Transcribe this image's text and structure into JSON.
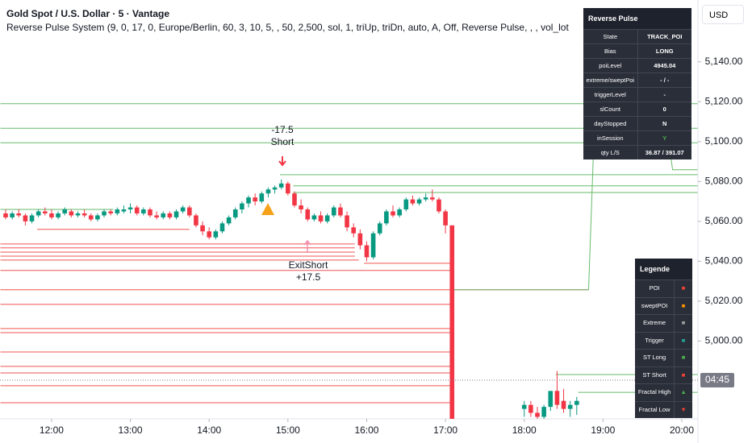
{
  "header": {
    "title": "Gold Spot / U.S. Dollar · 5 · Vantage",
    "indicator": "Reverse Pulse System (9, 0, 17, 0, Europe/Berlin, 60, 3, 10, 5, , 50, 2,500, sol, 1, triUp, triDn, auto, A, Off, Reverse Pulse, , , vol_lot"
  },
  "currency": "USD",
  "chart_data": {
    "type": "candlestick",
    "xlim": [
      680.7,
      1212.3
    ],
    "ylim": [
      4961,
      5171
    ],
    "xticks": [
      {
        "value": 720,
        "label": "12:00"
      },
      {
        "value": 780,
        "label": "13:00"
      },
      {
        "value": 840,
        "label": "14:00"
      },
      {
        "value": 900,
        "label": "15:00"
      },
      {
        "value": 960,
        "label": "16:00"
      },
      {
        "value": 1020,
        "label": "17:00"
      },
      {
        "value": 1080,
        "label": "18:00"
      },
      {
        "value": 1140,
        "label": "19:00"
      },
      {
        "value": 1200,
        "label": "20:00"
      }
    ],
    "yticks": [
      {
        "value": 5000,
        "label": "5,000.00"
      },
      {
        "value": 5020,
        "label": "5,020.00"
      },
      {
        "value": 5040,
        "label": "5,040.00"
      },
      {
        "value": 5060,
        "label": "5,060.00"
      },
      {
        "value": 5080,
        "label": "5,080.00"
      },
      {
        "value": 5100,
        "label": "5,100.00"
      },
      {
        "value": 5120,
        "label": "5,120.00"
      },
      {
        "value": 5140,
        "label": "5,140.00"
      }
    ],
    "up_color": "#089981",
    "down_color": "#f23645",
    "x": [
      685,
      690,
      695,
      700,
      705,
      710,
      715,
      720,
      725,
      730,
      735,
      740,
      745,
      750,
      755,
      760,
      765,
      770,
      775,
      780,
      785,
      790,
      795,
      800,
      805,
      810,
      815,
      820,
      825,
      830,
      835,
      840,
      845,
      850,
      855,
      860,
      865,
      870,
      875,
      880,
      885,
      890,
      895,
      900,
      905,
      910,
      915,
      920,
      925,
      930,
      935,
      940,
      945,
      950,
      955,
      960,
      965,
      970,
      975,
      980,
      985,
      990,
      995,
      1000,
      1005,
      1010,
      1015,
      1020,
      1025,
      1080,
      1085,
      1090,
      1095,
      1100,
      1105,
      1110,
      1115,
      1120
    ],
    "open": [
      5064,
      5062,
      5064,
      5063,
      5060,
      5063,
      5065,
      5064,
      5062,
      5064,
      5065,
      5063,
      5064,
      5063,
      5061,
      5063,
      5065,
      5064,
      5065,
      5066,
      5067,
      5064,
      5066,
      5063,
      5062,
      5064,
      5062,
      5065,
      5067,
      5063,
      5058,
      5055,
      5052,
      5055,
      5059,
      5062,
      5066,
      5069,
      5072,
      5070,
      5074,
      5076,
      5077,
      5079,
      5074,
      5068,
      5066,
      5061,
      5063,
      5060,
      5063,
      5067,
      5063,
      5057,
      5054,
      5048,
      5042,
      5054,
      5059,
      5065,
      5063,
      5066,
      5071,
      5069,
      5071,
      5072,
      5071,
      5065,
      5058,
      4966,
      4968,
      4964,
      4962,
      4967,
      4975,
      4970,
      4966,
      4968
    ],
    "high": [
      5066,
      5065,
      5066,
      5064,
      5064,
      5066,
      5067,
      5066,
      5065,
      5067,
      5066,
      5065,
      5066,
      5064,
      5064,
      5066,
      5066,
      5067,
      5068,
      5069,
      5068,
      5067,
      5067,
      5065,
      5065,
      5065,
      5066,
      5068,
      5068,
      5064,
      5060,
      5057,
      5056,
      5060,
      5063,
      5067,
      5070,
      5073,
      5074,
      5075,
      5077,
      5078,
      5081,
      5080,
      5075,
      5071,
      5067,
      5064,
      5065,
      5064,
      5068,
      5069,
      5065,
      5059,
      5056,
      5050,
      5055,
      5060,
      5066,
      5068,
      5067,
      5072,
      5073,
      5072,
      5074,
      5076,
      5072,
      5066,
      5058,
      4970,
      4970,
      4967,
      4968,
      4974,
      4985,
      4976,
      4970,
      4972
    ],
    "low": [
      5061,
      5061,
      5062,
      5058,
      5059,
      5062,
      5063,
      5061,
      5061,
      5063,
      5062,
      5062,
      5062,
      5060,
      5060,
      5062,
      5063,
      5063,
      5064,
      5064,
      5063,
      5063,
      5062,
      5061,
      5061,
      5061,
      5061,
      5064,
      5062,
      5057,
      5053,
      5051,
      5051,
      5054,
      5058,
      5061,
      5064,
      5067,
      5068,
      5069,
      5072,
      5074,
      5076,
      5073,
      5067,
      5064,
      5060,
      5060,
      5059,
      5059,
      5062,
      5062,
      5055,
      5052,
      5046,
      5040,
      5041,
      5053,
      5058,
      5062,
      5062,
      5065,
      5068,
      5068,
      5070,
      5070,
      5064,
      5054,
      4955,
      4962,
      4962,
      4960,
      4961,
      4965,
      4966,
      4964,
      4962,
      4963
    ],
    "close": [
      5062,
      5064,
      5063,
      5060,
      5063,
      5065,
      5064,
      5062,
      5064,
      5066,
      5063,
      5064,
      5063,
      5061,
      5063,
      5065,
      5064,
      5066,
      5066,
      5067,
      5064,
      5066,
      5063,
      5062,
      5064,
      5062,
      5065,
      5067,
      5063,
      5058,
      5055,
      5052,
      5055,
      5059,
      5062,
      5066,
      5069,
      5072,
      5070,
      5074,
      5076,
      5077,
      5079,
      5074,
      5068,
      5066,
      5061,
      5063,
      5060,
      5063,
      5067,
      5063,
      5057,
      5054,
      5048,
      5042,
      5054,
      5059,
      5065,
      5063,
      5066,
      5071,
      5069,
      5071,
      5072,
      5071,
      5065,
      5058,
      4960,
      4968,
      4964,
      4962,
      4967,
      4975,
      4968,
      4966,
      4968,
      4970
    ],
    "levels": {
      "values": [
        5119,
        5106.7,
        5099.4,
        5083.4,
        5077.8,
        5074.5,
        4983.2,
        4974.3,
        5066,
        5056,
        5048.7,
        5046.7,
        5044.6,
        5042.6,
        5040.6,
        5039,
        5035.4,
        5025.7,
        5018.4,
        5006.3,
        5004.2,
        4994.5,
        4987.3,
        4984,
        4977.6,
        4969.1
      ],
      "colors": [
        "#66bb6a",
        "#66bb6a",
        "#66bb6a",
        "#66bb6a",
        "#66bb6a",
        "#66bb6a",
        "#66bb6a",
        "#66bb6a",
        "#66bb6a",
        "#ef5350",
        "#ef5350",
        "#ef5350",
        "#ef5350",
        "#ef5350",
        "#ef5350",
        "#ef5350",
        "#ef5350",
        "#ef5350",
        "#ef5350",
        "#ef5350",
        "#ef5350",
        "#ef5350",
        "#ef5350",
        "#ef5350",
        "#ef5350",
        "#ef5350"
      ],
      "start": [
        681,
        681,
        681,
        894,
        904,
        904,
        1104,
        1121,
        681,
        709,
        681,
        681,
        681,
        681,
        681,
        958,
        681,
        681,
        681,
        681,
        681,
        681,
        681,
        681,
        681,
        681
      ],
      "end": [
        1212,
        1212,
        1212,
        1212,
        1212,
        1212,
        1212,
        1212,
        767,
        825,
        951,
        951,
        951,
        951,
        954,
        1024,
        1024,
        1129,
        1024,
        1024,
        1024,
        1024,
        1024,
        1024,
        1024,
        1024
      ]
    },
    "trail": {
      "color": "#66bb6a",
      "x": [
        1024,
        1129,
        1133,
        1190,
        1193,
        1212
      ],
      "values": [
        5025.7,
        5025.7,
        5100,
        5100,
        5085.9,
        5085.9
      ]
    },
    "last_price": 4980.4,
    "countdown": "04:45",
    "annotations": [
      "-17.5",
      "Short",
      "ExitShort",
      "+17.5"
    ]
  },
  "info_table": {
    "title": "Reverse Pulse",
    "rows": [
      [
        "State",
        "TRACK_POI"
      ],
      [
        "Bias",
        "LONG"
      ],
      [
        "poiLevel",
        "4945.04"
      ],
      [
        "extreme/sweptPoi",
        "- / -"
      ],
      [
        "triggerLevel",
        "-"
      ],
      [
        "slCount",
        "0"
      ],
      [
        "dayStopped",
        "N"
      ],
      [
        "inSession",
        "Y"
      ],
      [
        "qty L/S",
        "36.87 / 391.07"
      ]
    ]
  },
  "legend_table": {
    "title": "Legende",
    "rows": [
      {
        "label": "POI",
        "symbol": "■",
        "color": "#f44336"
      },
      {
        "label": "sweptPOI",
        "symbol": "■",
        "color": "#ff9800"
      },
      {
        "label": "Extreme",
        "symbol": "■",
        "color": "#9e9e9e"
      },
      {
        "label": "Trigger",
        "symbol": "■",
        "color": "#26a69a"
      },
      {
        "label": "ST Long",
        "symbol": "■",
        "color": "#4caf50"
      },
      {
        "label": "ST Short",
        "symbol": "■",
        "color": "#f44336"
      },
      {
        "label": "Fractal High",
        "symbol": "▲",
        "color": "#4caf50"
      },
      {
        "label": "Fractal Low",
        "symbol": "▼",
        "color": "#f44336"
      }
    ]
  }
}
